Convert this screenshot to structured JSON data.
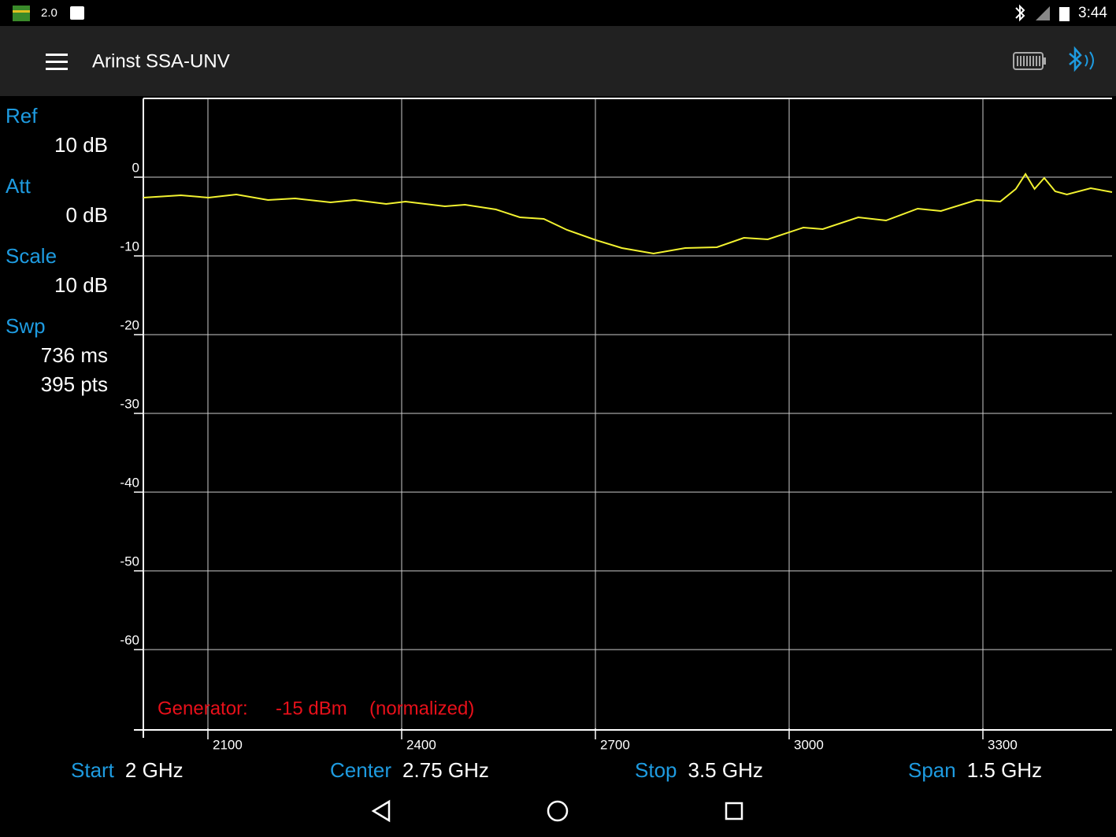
{
  "status_bar": {
    "left_text": "2.0",
    "time": "3:44"
  },
  "app_bar": {
    "title": "Arinst SSA-UNV"
  },
  "side_panel": [
    {
      "label": "Ref",
      "lines": [
        "10 dB"
      ]
    },
    {
      "label": "Att",
      "lines": [
        "0 dB"
      ]
    },
    {
      "label": "Scale",
      "lines": [
        "10 dB"
      ]
    },
    {
      "label": "Swp",
      "lines": [
        "736 ms",
        "395 pts"
      ]
    }
  ],
  "generator": {
    "label": "Generator:",
    "level": "-15 dBm",
    "note": "(normalized)"
  },
  "footer": [
    {
      "label": "Start",
      "value": "2 GHz"
    },
    {
      "label": "Center",
      "value": "2.75 GHz"
    },
    {
      "label": "Stop",
      "value": "3.5 GHz"
    },
    {
      "label": "Span",
      "value": "1.5 GHz"
    }
  ],
  "chart_data": {
    "type": "line",
    "x": [
      2000,
      2058,
      2101,
      2144,
      2193,
      2235,
      2290,
      2327,
      2376,
      2406,
      2467,
      2498,
      2546,
      2583,
      2620,
      2656,
      2701,
      2741,
      2790,
      2839,
      2888,
      2930,
      2967,
      3022,
      3052,
      3107,
      3150,
      3199,
      3235,
      3290,
      3327,
      3351,
      3366,
      3380,
      3395,
      3412,
      3430,
      3467,
      3500
    ],
    "values": [
      -2.6,
      -2.3,
      -2.6,
      -2.2,
      -2.9,
      -2.7,
      -3.2,
      -2.9,
      -3.4,
      -3.1,
      -3.7,
      -3.5,
      -4.1,
      -5.1,
      -5.3,
      -6.7,
      -8.0,
      -9.0,
      -9.7,
      -9.0,
      -8.9,
      -7.7,
      -7.9,
      -6.4,
      -6.6,
      -5.1,
      -5.5,
      -4.0,
      -4.3,
      -2.9,
      -3.1,
      -1.5,
      0.4,
      -1.5,
      -0.1,
      -1.8,
      -2.2,
      -1.4,
      -1.9
    ],
    "color": "#f2f230",
    "xlim": [
      2000,
      3500
    ],
    "ylim": [
      -70,
      10
    ],
    "xticks": [
      2100,
      2400,
      2700,
      3000,
      3300
    ],
    "yticks": [
      0,
      -10,
      -20,
      -30,
      -40,
      -50,
      -60
    ],
    "grid": true
  }
}
